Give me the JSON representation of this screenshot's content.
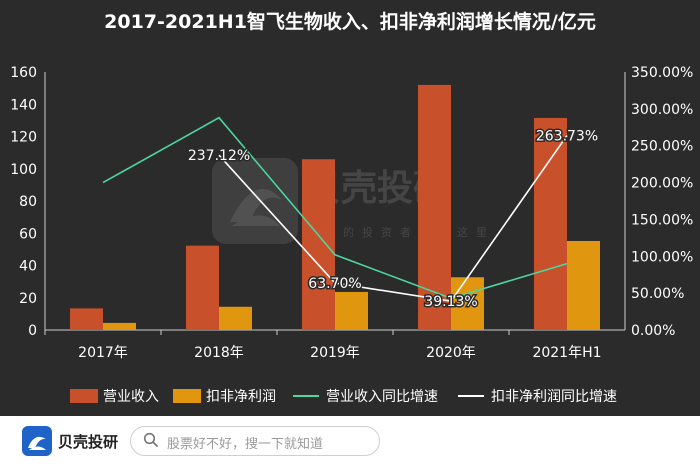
{
  "chart_data": {
    "type": "bar",
    "title": "2017-2021H1智飞生物收入、扣非净利润增长情况/亿元",
    "categories": [
      "2017年",
      "2018年",
      "2019年",
      "2020年",
      "2021年H1"
    ],
    "y_left": {
      "ticks": [
        "0",
        "20",
        "40",
        "60",
        "80",
        "100",
        "120",
        "140",
        "160"
      ],
      "range": [
        0,
        160
      ]
    },
    "y_right": {
      "ticks": [
        "0.00%",
        "50.00%",
        "100.00%",
        "150.00%",
        "200.00%",
        "250.00%",
        "300.00%",
        "350.00%"
      ],
      "range": [
        0,
        350
      ]
    },
    "series": [
      {
        "name": "营业收入",
        "kind": "bar",
        "axis": "left",
        "color": "#c8502a",
        "values": [
          13.4,
          52.3,
          105.9,
          152.0,
          131.5
        ]
      },
      {
        "name": "扣非净利润",
        "kind": "bar",
        "axis": "left",
        "color": "#e0960f",
        "values": [
          4.4,
          14.4,
          23.6,
          32.7,
          55.2
        ]
      },
      {
        "name": "营业收入同比增速",
        "kind": "line",
        "axis": "right",
        "color": "#4dd6a0",
        "values": [
          200.0,
          288.0,
          102.0,
          43.0,
          90.0
        ]
      },
      {
        "name": "扣非净利润同比增速",
        "kind": "line",
        "axis": "right",
        "color": "#ffffff",
        "values": [
          null,
          237.12,
          63.7,
          39.13,
          263.73
        ]
      }
    ],
    "annotations": [
      "237.12%",
      "63.70%",
      "39.13%",
      "263.73%"
    ],
    "legend_position": "bottom",
    "grid": false
  },
  "watermark": {
    "brand": "贝壳投研",
    "slogan": "聪明的投资者都在这里"
  },
  "footer": {
    "brand": "贝壳投研",
    "search_placeholder": "股票好不好，搜一下就知道",
    "search_icon": "search-icon",
    "logo_icon": "shell-logo-icon"
  }
}
